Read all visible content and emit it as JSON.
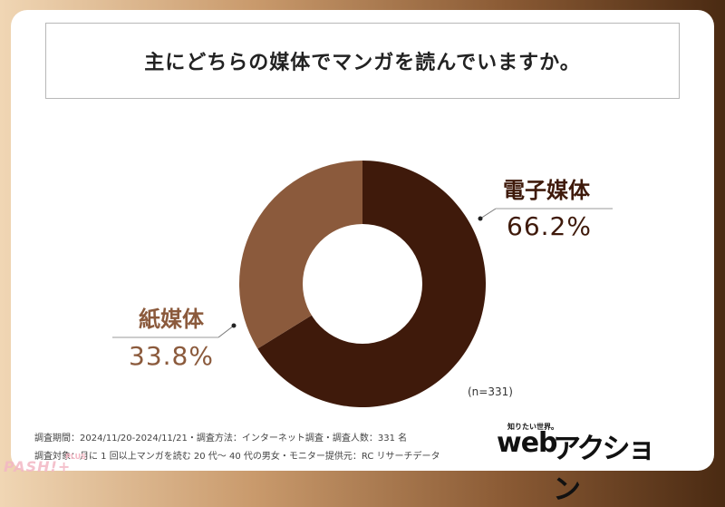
{
  "question": "主にどちらの媒体でマンガを読んでいますか。",
  "chart_data": {
    "type": "pie",
    "variant": "donut",
    "slices": [
      {
        "label": "電子媒体",
        "value": 66.2,
        "display": "66.2%",
        "color": "#3f1a0b"
      },
      {
        "label": "紙媒体",
        "value": 33.8,
        "display": "33.8%",
        "color": "#8b5a3c"
      }
    ],
    "sample_size": "(n=331)"
  },
  "footnotes": {
    "line1": "調査期間：2024/11/20-2024/11/21・調査方法：インターネット調査・調査人数：331 名",
    "line2": "調査対象：月に 1 回以上マンガを読む 20 代〜 40 代の男女・モニター提供元：RC リサーチデータ"
  },
  "logo": {
    "tagline": "知りたい世界。",
    "web": "web",
    "name": "アクション"
  },
  "watermark": {
    "text": "PASH!+",
    "plus": "PLUS"
  },
  "colors": {
    "accent_dark": "#3f1a0b",
    "accent_light": "#8b5a3c"
  }
}
